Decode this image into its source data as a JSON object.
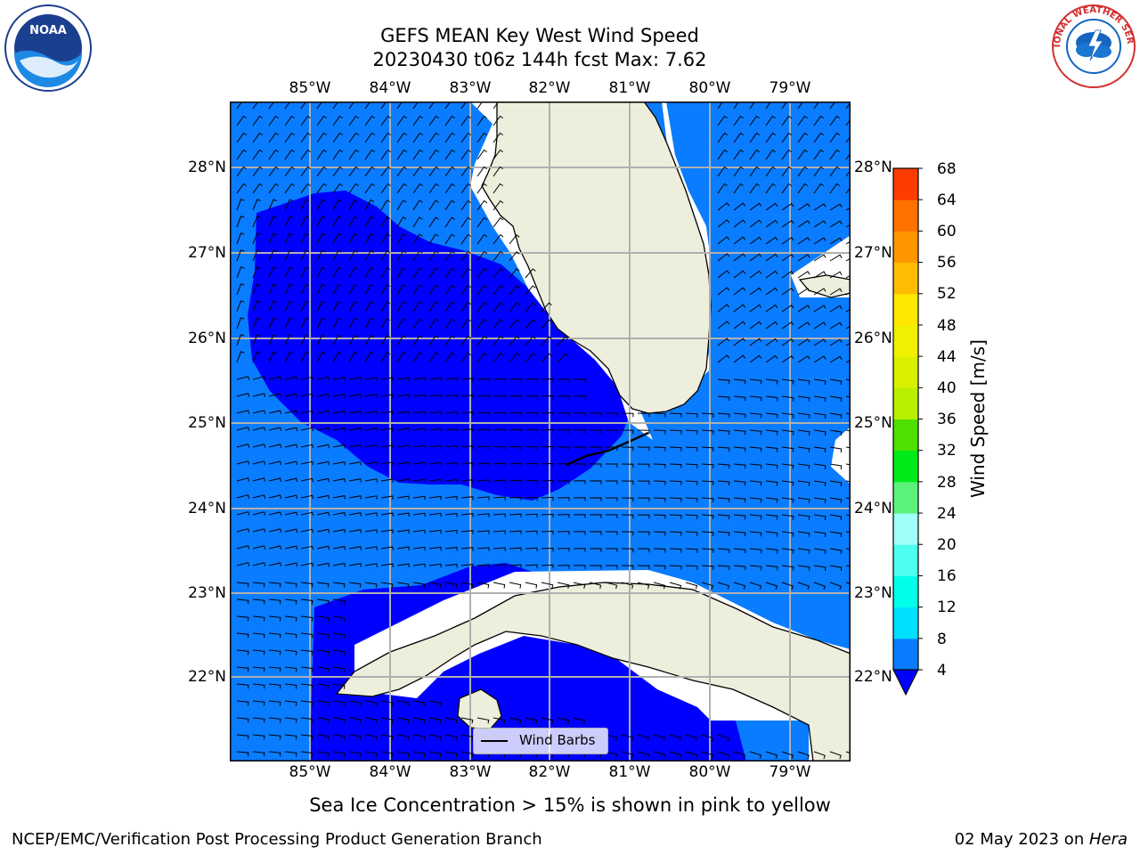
{
  "title": {
    "line1": "GEFS MEAN Key West Wind Speed",
    "line2": "20230430 t06z 144h fcst   Max: 7.62"
  },
  "logos": {
    "left": {
      "text": "NOAA",
      "icon": "noaa-logo"
    },
    "right": {
      "text": "NATIONAL WEATHER SERVICE",
      "icon": "nws-logo"
    }
  },
  "map": {
    "lon_labels": [
      "85°W",
      "84°W",
      "83°W",
      "82°W",
      "81°W",
      "80°W",
      "79°W"
    ],
    "lat_labels": [
      "28°N",
      "27°N",
      "26°N",
      "25°N",
      "24°N",
      "23°N",
      "22°N"
    ],
    "extent": {
      "lon_min": -86.0,
      "lon_max": -78.25,
      "lat_min": 21.0,
      "lat_max": 28.75
    },
    "colors": {
      "ocean_4_8": "#0a7cff",
      "ocean_below_4": "#0000ff",
      "land": "#eeeedd",
      "missing": "#ffffff"
    },
    "legend_label": "Wind Barbs"
  },
  "colorbar": {
    "label": "Wind Speed [m/s]",
    "ticks": [
      "68",
      "64",
      "60",
      "56",
      "52",
      "48",
      "44",
      "40",
      "36",
      "32",
      "28",
      "24",
      "20",
      "16",
      "12",
      "8",
      "4"
    ],
    "levels": [
      4,
      8,
      12,
      16,
      20,
      24,
      28,
      32,
      36,
      40,
      44,
      48,
      52,
      56,
      60,
      64,
      68
    ],
    "colors": [
      "#0a7cff",
      "#00dfff",
      "#00ffe8",
      "#4dfff0",
      "#a0fff8",
      "#5cf27a",
      "#00ea1a",
      "#4ee000",
      "#b8f000",
      "#d8f000",
      "#f0f000",
      "#ffe800",
      "#ffbc00",
      "#ff9600",
      "#ff7200",
      "#ff3c00",
      "#ff0000"
    ],
    "under_color": "#0000ff"
  },
  "caption": "Sea Ice Concentration > 15% is shown in pink to yellow",
  "footer": {
    "left": "NCEP/EMC/Verification Post Processing Product Generation Branch",
    "right_date": "02 May 2023 on ",
    "right_machine": "Hera"
  }
}
